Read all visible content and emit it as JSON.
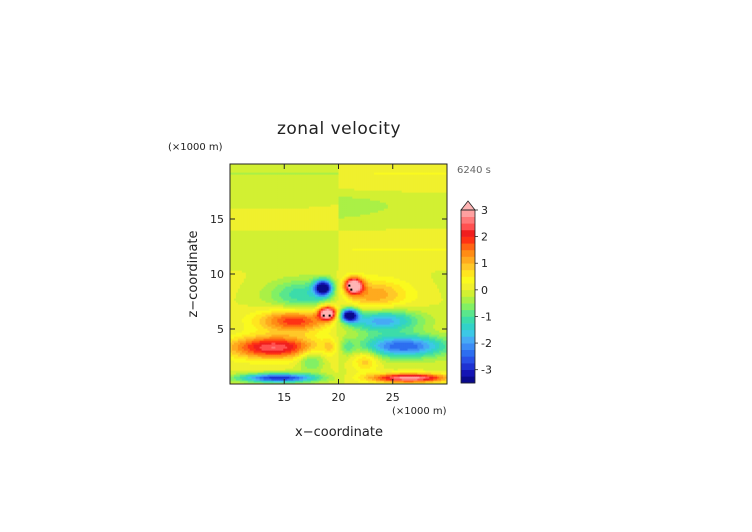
{
  "chart_data": {
    "type": "heatmap",
    "title": "zonal velocity",
    "xlabel": "x−coordinate",
    "ylabel": "z−coordinate",
    "x_unit": "(×1000 m)",
    "y_unit": "(×1000 m)",
    "time_label": "6240 s",
    "xlim": [
      10,
      30
    ],
    "ylim": [
      0,
      20
    ],
    "x_ticks": [
      15,
      20,
      25
    ],
    "y_ticks": [
      5,
      10,
      15
    ],
    "colorbar": {
      "ticks": [
        3,
        2,
        1,
        0,
        -1,
        -2,
        -3
      ],
      "levels": [
        -3.5,
        -3.25,
        -3,
        -2.75,
        -2.5,
        -2.25,
        -2,
        -1.75,
        -1.5,
        -1.25,
        -1,
        -0.75,
        -0.5,
        -0.25,
        0,
        0.25,
        0.5,
        0.75,
        1,
        1.25,
        1.5,
        1.75,
        2,
        2.25,
        2.5,
        2.75,
        3,
        3.25,
        3.5
      ],
      "colors": [
        "#0a0a8c",
        "#1414b4",
        "#1e32d2",
        "#2850e6",
        "#2d6ef0",
        "#3c8cf5",
        "#46aaf5",
        "#3cc8e6",
        "#32d2c8",
        "#3cdcaa",
        "#5ae68c",
        "#82f064",
        "#aaf046",
        "#d2f032",
        "#f0f02d",
        "#fafa1e",
        "#ffe61e",
        "#ffc828",
        "#ffaa1e",
        "#ff8c14",
        "#ff6414",
        "#ff3214",
        "#f01e1e",
        "#ff5050",
        "#ff7878",
        "#ffa0a0",
        "#ffb4b4"
      ],
      "extend_max": true
    },
    "features": [
      {
        "x": 18.5,
        "z": 8.8,
        "u": -3.5
      },
      {
        "x": 21.5,
        "z": 9.0,
        "u": 3.5
      },
      {
        "x": 19.0,
        "z": 6.5,
        "u": 3.2
      },
      {
        "x": 21.0,
        "z": 6.3,
        "u": -3.5
      },
      {
        "x": 14.0,
        "z": 3.4,
        "u": 2.4
      },
      {
        "x": 26.0,
        "z": 3.5,
        "u": -2.4
      },
      {
        "x": 14.5,
        "z": 0.6,
        "u": -2.8
      },
      {
        "x": 26.5,
        "z": 0.6,
        "u": 2.8
      }
    ]
  }
}
